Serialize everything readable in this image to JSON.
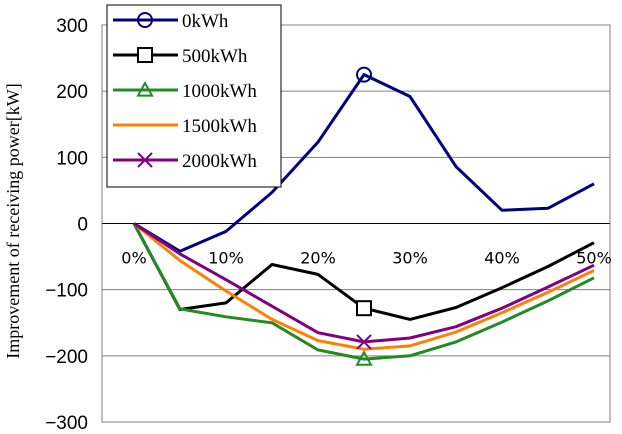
{
  "chart_data": {
    "type": "line",
    "title": "",
    "xlabel": "",
    "ylabel": "Improvement of receiving power[kW]",
    "x": [
      0,
      5,
      10,
      15,
      20,
      25,
      30,
      35,
      40,
      45,
      50
    ],
    "x_tick_values": [
      0,
      10,
      20,
      30,
      40,
      50
    ],
    "x_tick_labels": [
      "0%",
      "10%",
      "20%",
      "30%",
      "40%",
      "50%"
    ],
    "ylim": [
      -300,
      300
    ],
    "y_ticks": [
      -300,
      -200,
      -100,
      0,
      100,
      200,
      300
    ],
    "y_tick_labels": [
      "−300",
      "−200",
      "−100",
      "0",
      "100",
      "200",
      "300"
    ],
    "grid": "horizontal",
    "legend_position": "top-left",
    "series": [
      {
        "name": "0kWh",
        "color": "#000080",
        "marker": "circle",
        "marker_at": 25,
        "values": [
          0,
          -42,
          -12,
          47,
          123,
          225,
          192,
          86,
          20,
          23,
          60
        ]
      },
      {
        "name": "500kWh",
        "color": "#000000",
        "marker": "square",
        "marker_at": 25,
        "values": [
          0,
          -130,
          -120,
          -62,
          -77,
          -128,
          -145,
          -127,
          -97,
          -65,
          -29
        ]
      },
      {
        "name": "1000kWh",
        "color": "#228B22",
        "marker": "triangle",
        "marker_at": 25,
        "values": [
          0,
          -129,
          -141,
          -150,
          -191,
          -205,
          -200,
          -179,
          -149,
          -117,
          -82
        ]
      },
      {
        "name": "1500kWh",
        "color": "#FF8000",
        "marker": "none",
        "marker_at": null,
        "values": [
          0,
          -56,
          -102,
          -145,
          -177,
          -190,
          -185,
          -164,
          -135,
          -104,
          -71
        ]
      },
      {
        "name": "2000kWh",
        "color": "#800080",
        "marker": "x",
        "marker_at": 25,
        "values": [
          0,
          -46,
          -85,
          -125,
          -165,
          -179,
          -173,
          -156,
          -128,
          -96,
          -63
        ]
      }
    ]
  }
}
